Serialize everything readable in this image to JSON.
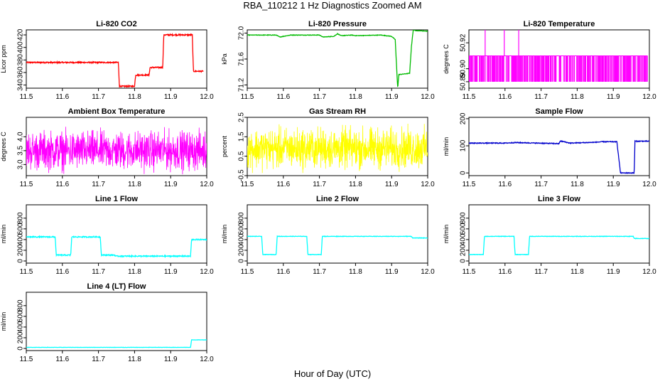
{
  "figure": {
    "title": "RBA_110212  1 Hz Diagnostics Zoomed AM",
    "xlabel": "Hour of Day (UTC)"
  },
  "chart_data": [
    {
      "type": "line",
      "title": "Li-820 CO2",
      "ylabel": "Licor ppm",
      "color": "#ff0000",
      "xlim": [
        11.5,
        12.0
      ],
      "ylim": [
        335,
        428
      ],
      "yticks": [
        340,
        360,
        380,
        400,
        420
      ],
      "noise": 1.0,
      "x": [
        11.5,
        11.755,
        11.758,
        11.8,
        11.803,
        11.84,
        11.843,
        11.878,
        11.881,
        11.96,
        11.963,
        11.99
      ],
      "y": [
        376,
        376,
        338,
        338,
        356,
        356,
        368,
        368,
        420,
        420,
        362,
        362
      ]
    },
    {
      "type": "line",
      "title": "Li-820 Pressure",
      "ylabel": "kPa",
      "color": "#00bb00",
      "xlim": [
        11.5,
        12.0
      ],
      "ylim": [
        71.15,
        72.05
      ],
      "yticks": [
        71.2,
        71.6,
        72.0
      ],
      "noise": 0.004,
      "x": [
        11.5,
        11.58,
        11.59,
        11.62,
        11.7,
        11.71,
        11.74,
        11.75,
        11.76,
        11.79,
        11.8,
        11.87,
        11.9,
        11.91,
        11.915,
        11.917,
        11.92,
        11.95,
        11.955,
        11.96,
        11.965,
        12.0
      ],
      "y": [
        71.97,
        71.97,
        71.94,
        71.97,
        71.97,
        71.94,
        71.95,
        71.99,
        71.96,
        71.97,
        71.96,
        71.97,
        71.95,
        71.9,
        71.35,
        71.15,
        71.36,
        71.38,
        71.8,
        72.05,
        72.04,
        72.03
      ]
    },
    {
      "type": "spike",
      "title": "Li-820 Temperature",
      "ylabel": "degrees C",
      "color": "#ff00ff",
      "xlim": [
        11.5,
        12.0
      ],
      "ylim": [
        50.885,
        50.93
      ],
      "yticks": [
        50.89,
        50.9,
        50.92
      ],
      "base": 50.91,
      "low": 50.89,
      "high": 50.93,
      "low_spike_count": 400,
      "high_spike_x": [
        11.545,
        11.598,
        11.638
      ]
    },
    {
      "type": "noise",
      "title": "Ambient Box Temperature",
      "ylabel": "degrees C",
      "color": "#ff00ff",
      "xlim": [
        11.5,
        12.0
      ],
      "ylim": [
        2.6,
        4.7
      ],
      "yticks": [
        3.0,
        3.5,
        4.0
      ],
      "mean": 3.5,
      "spread": 1.0
    },
    {
      "type": "noise",
      "title": "Gas Stream RH",
      "ylabel": "percent",
      "color": "#ffff00",
      "xlim": [
        11.5,
        12.0
      ],
      "ylim": [
        -0.5,
        2.5
      ],
      "yticks": [
        -0.5,
        0.5,
        1.5,
        2.5
      ],
      "mean": 0.9,
      "spread": 1.5
    },
    {
      "type": "line",
      "title": "Sample Flow",
      "ylabel": "ml/min",
      "color": "#0000cc",
      "xlim": [
        11.5,
        12.0
      ],
      "ylim": [
        -10,
        205
      ],
      "yticks": [
        0,
        100,
        200
      ],
      "noise": 1.5,
      "x": [
        11.5,
        11.6,
        11.63,
        11.75,
        11.753,
        11.78,
        11.85,
        11.87,
        11.91,
        11.92,
        11.958,
        11.96,
        12.0
      ],
      "y": [
        110,
        110,
        112,
        108,
        118,
        110,
        113,
        115,
        115,
        0,
        0,
        117,
        117
      ]
    },
    {
      "type": "line",
      "title": "Line 1 Flow",
      "ylabel": "ml/min",
      "color": "#00ffff",
      "xlim": [
        11.5,
        12.0
      ],
      "ylim": [
        -40,
        1050
      ],
      "yticks": [
        0,
        200,
        400,
        600,
        800
      ],
      "noise": 10,
      "x": [
        11.5,
        11.58,
        11.583,
        11.623,
        11.626,
        11.705,
        11.708,
        11.745,
        11.748,
        11.955,
        11.958,
        12.0
      ],
      "y": [
        450,
        450,
        110,
        110,
        450,
        450,
        110,
        110,
        90,
        90,
        400,
        400
      ]
    },
    {
      "type": "line",
      "title": "Line 2 Flow",
      "ylabel": "ml/min",
      "color": "#00ffff",
      "xlim": [
        11.5,
        12.0
      ],
      "ylim": [
        -40,
        1050
      ],
      "yticks": [
        0,
        200,
        400,
        600,
        800
      ],
      "noise": 4,
      "x": [
        11.5,
        11.54,
        11.543,
        11.58,
        11.583,
        11.665,
        11.668,
        11.705,
        11.708,
        11.955,
        11.958,
        12.0
      ],
      "y": [
        460,
        460,
        120,
        120,
        460,
        460,
        120,
        120,
        460,
        460,
        430,
        430
      ]
    },
    {
      "type": "line",
      "title": "Line 3 Flow",
      "ylabel": "ml/min",
      "color": "#00ffff",
      "xlim": [
        11.5,
        12.0
      ],
      "ylim": [
        -40,
        1050
      ],
      "yticks": [
        0,
        200,
        400,
        600,
        800
      ],
      "noise": 4,
      "x": [
        11.5,
        11.54,
        11.543,
        11.625,
        11.628,
        11.665,
        11.668,
        11.955,
        11.958,
        12.0
      ],
      "y": [
        120,
        120,
        460,
        460,
        120,
        120,
        460,
        460,
        420,
        420
      ]
    },
    {
      "type": "line",
      "title": "Line 4 (LT) Flow",
      "ylabel": "ml/min",
      "color": "#00ffff",
      "xlim": [
        11.5,
        12.0
      ],
      "ylim": [
        -40,
        1050
      ],
      "yticks": [
        0,
        200,
        400,
        600,
        800
      ],
      "noise": 2,
      "x": [
        11.5,
        11.955,
        11.958,
        12.0
      ],
      "y": [
        20,
        20,
        160,
        160
      ]
    }
  ],
  "x_ticks": [
    11.5,
    11.6,
    11.7,
    11.8,
    11.9,
    12.0
  ]
}
